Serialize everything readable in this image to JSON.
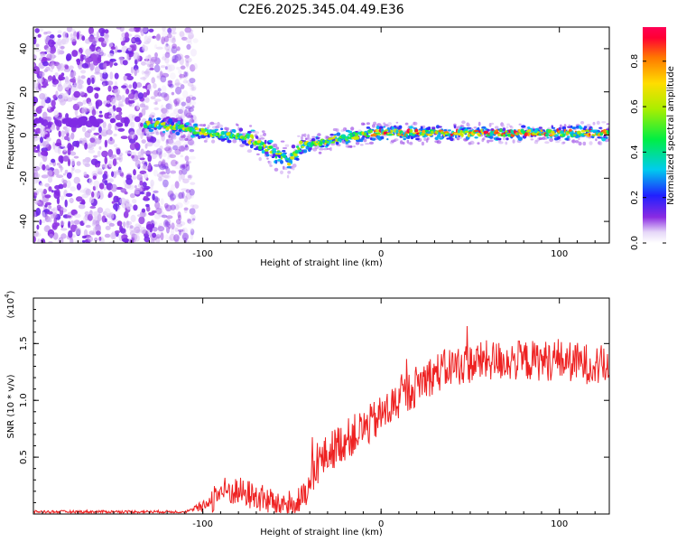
{
  "title": "C2E6.2025.345.04.49.E36",
  "colors": {
    "snr_line": "#ee2222",
    "scatter_low": "#d9c8f4",
    "scatter_mid": "#7b1fe8",
    "frame": "#000000"
  },
  "chart_data": [
    {
      "type": "heatmap",
      "name": "spectrogram",
      "title": "C2E6.2025.345.04.49.E36",
      "xlabel": "Height of straight line (km)",
      "ylabel": "Frequency (Hz)",
      "xlim": [
        -195,
        128
      ],
      "ylim": [
        -50,
        50
      ],
      "xticks": [
        -100,
        0,
        100
      ],
      "yticks": [
        -40,
        -20,
        0,
        20,
        40
      ],
      "colorbar": {
        "label": "Normalized spectral amplitude",
        "range": [
          0.0,
          0.95
        ],
        "ticks": [
          "0.0",
          "0.2",
          "0.4",
          "0.6",
          "0.8"
        ],
        "colormap": "rainbow"
      },
      "description_of_features": {
        "noise_region_x": [
          -195,
          -112
        ],
        "track": [
          {
            "x": -130,
            "y": 5
          },
          {
            "x": -110,
            "y": 3
          },
          {
            "x": -90,
            "y": 0
          },
          {
            "x": -80,
            "y": 0
          },
          {
            "x": -70,
            "y": -3
          },
          {
            "x": -60,
            "y": -8
          },
          {
            "x": -52,
            "y": -12
          },
          {
            "x": -45,
            "y": -5
          },
          {
            "x": -35,
            "y": -4
          },
          {
            "x": -20,
            "y": -1
          },
          {
            "x": -5,
            "y": 1
          },
          {
            "x": 10,
            "y": 1
          },
          {
            "x": 40,
            "y": 1
          },
          {
            "x": 80,
            "y": 1
          },
          {
            "x": 128,
            "y": 1
          }
        ]
      }
    },
    {
      "type": "line",
      "name": "snr",
      "xlabel": "Height of straight line (km)",
      "ylabel": "SNR (10 * v/v)",
      "y_multiplier_label": "(x10",
      "y_multiplier_exp": "4",
      "xlim": [
        -195,
        128
      ],
      "ylim": [
        0,
        1.9
      ],
      "xticks": [
        -100,
        0,
        100
      ],
      "yticks": [
        0.5,
        1.0,
        1.5
      ],
      "y_units": "x10^4",
      "trend": [
        {
          "x": -195,
          "y": 0.02
        },
        {
          "x": -110,
          "y": 0.02
        },
        {
          "x": -100,
          "y": 0.06
        },
        {
          "x": -90,
          "y": 0.2
        },
        {
          "x": -80,
          "y": 0.2
        },
        {
          "x": -70,
          "y": 0.15
        },
        {
          "x": -60,
          "y": 0.1
        },
        {
          "x": -50,
          "y": 0.08
        },
        {
          "x": -42,
          "y": 0.15
        },
        {
          "x": -35,
          "y": 0.45
        },
        {
          "x": -25,
          "y": 0.6
        },
        {
          "x": -15,
          "y": 0.7
        },
        {
          "x": -5,
          "y": 0.8
        },
        {
          "x": 10,
          "y": 1.0
        },
        {
          "x": 25,
          "y": 1.2
        },
        {
          "x": 40,
          "y": 1.3
        },
        {
          "x": 60,
          "y": 1.35
        },
        {
          "x": 80,
          "y": 1.35
        },
        {
          "x": 100,
          "y": 1.35
        },
        {
          "x": 128,
          "y": 1.3
        }
      ],
      "noise_amplitude": 0.18
    }
  ]
}
